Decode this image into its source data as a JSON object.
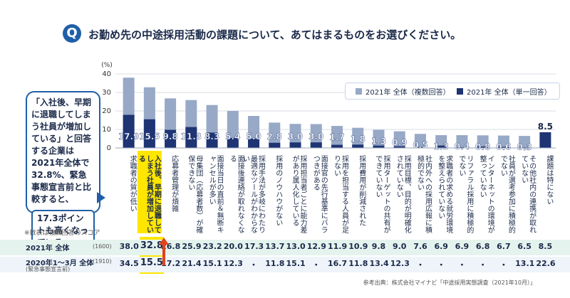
{
  "title": {
    "q": "Q",
    "text": "お勤め先の中途採用活動の課題について、あてはまるものをお選びください。"
  },
  "callout": {
    "text": "「入社後、早期に退職してしまう社員が増加している」と回答する企業は2021年全体で32.8%、緊急事態宣言前と比較すると、",
    "highlight": "17.3ポイントも高くなっている。"
  },
  "note": "※数表は複数回答のスコア",
  "table": {
    "row1_label": "2021年 全体",
    "row1_n": "(1600)",
    "row2_label": "2020年1〜3月 全体",
    "row2_n": "(1910)",
    "row2_sub": "(緊急事態宣言前)",
    "row1": [
      "38.0",
      "32.8",
      "26.8",
      "25.9",
      "23.2",
      "20.0",
      "17.3",
      "13.7",
      "13.0",
      "12.9",
      "11.9",
      "10.9",
      "9.8",
      "9.0",
      "7.6",
      "6.9",
      "6.9",
      "6.8",
      "6.7",
      "6.5",
      "8.5"
    ],
    "row2": [
      "34.5",
      "15.5",
      "17.2",
      "21.4",
      "15.1",
      "12.3",
      "・",
      "11.8",
      "15.1",
      "・",
      "16.7",
      "11.8",
      "13.4",
      "12.3",
      "・",
      "・",
      "・",
      "・",
      "・",
      "13.1",
      "22.6"
    ]
  },
  "source": "参考出典：株式会社マイナビ「中途採用実態調査（2021年10月）」",
  "colors": {
    "accent": "#1f5fa8",
    "multi": "#97a9c6",
    "single": "#1e3473",
    "highlight": "#ffe600",
    "arrow": "#e3421b"
  },
  "chart_data": {
    "type": "bar",
    "ylabel": "(%)",
    "ylim": [
      0,
      40
    ],
    "yticks": [
      "0",
      "10",
      "20",
      "30",
      "40"
    ],
    "highlight_index": 1,
    "categories": [
      "求職者の質が低い",
      "入社後、早期に退職してしまう社員が増加している",
      "応募者管理が煩雑",
      "母集団（応募者数）が確保できない",
      "面接当日の直前＆無断キャンセルが多い",
      "面接後連絡が取れなくなる",
      "採用手法が多岐にわたり最適なツールがわからない",
      "採用のノウハウがない",
      "採用担当者ごとに能力差があり属人化している",
      "面接官の先行基準にバラつきがある",
      "採用を担当する人員が足りない",
      "採用費用が削減された",
      "採用ターゲットの共有ができていない",
      "採用目標、目的が明確化されていない",
      "社内外への採用広報に積極的でない",
      "求職者の求める就労環境を整えられていない",
      "リファラル採用に積極的でない",
      "インターネットの環境が整っていない",
      "社員が選考参加に積極的でない",
      "その他社内の連携が取れていない",
      "課題は特にない"
    ],
    "series": [
      {
        "name": "2021年 全体（複数回答）",
        "values": [
          38.0,
          32.8,
          26.8,
          25.9,
          23.2,
          20.0,
          17.3,
          13.7,
          13.0,
          12.9,
          11.9,
          10.9,
          9.8,
          9.0,
          7.6,
          6.9,
          6.9,
          6.8,
          6.7,
          6.5,
          8.5
        ]
      },
      {
        "name": "2021年 全体（単一回答）",
        "values": [
          17.9,
          15.5,
          9.8,
          11.3,
          8.3,
          5.4,
          5.0,
          2.8,
          3.0,
          3.0,
          1.7,
          1.8,
          1.3,
          0.9,
          0.5,
          1.3,
          0.4,
          0.8,
          0.6,
          0.3,
          8.5
        ]
      }
    ]
  }
}
